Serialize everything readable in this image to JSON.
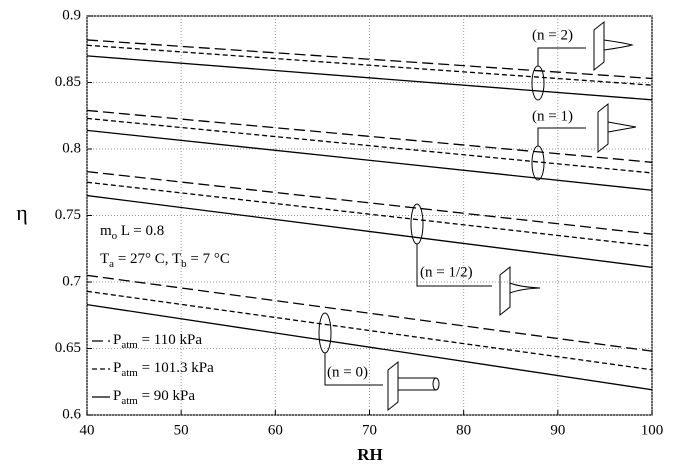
{
  "chart_data": {
    "type": "line",
    "xlabel": "RH",
    "ylabel": "η",
    "x": [
      40,
      100
    ],
    "xlim": [
      40,
      100
    ],
    "ylim": [
      0.6,
      0.9
    ],
    "xticks": [
      40,
      50,
      60,
      70,
      80,
      90,
      100
    ],
    "yticks": [
      0.6,
      0.65,
      0.7,
      0.75,
      0.8,
      0.85,
      0.9
    ],
    "grid": true,
    "color": "#000000",
    "series": [
      {
        "values": [
          0.882,
          0.853
        ],
        "dash": "long"
      },
      {
        "values": [
          0.878,
          0.848
        ],
        "dash": "short"
      },
      {
        "values": [
          0.87,
          0.837
        ],
        "dash": "solid"
      },
      {
        "values": [
          0.829,
          0.79
        ],
        "dash": "long"
      },
      {
        "values": [
          0.823,
          0.782
        ],
        "dash": "short"
      },
      {
        "values": [
          0.814,
          0.769
        ],
        "dash": "solid"
      },
      {
        "values": [
          0.783,
          0.736
        ],
        "dash": "long"
      },
      {
        "values": [
          0.775,
          0.727
        ],
        "dash": "short"
      },
      {
        "values": [
          0.765,
          0.711
        ],
        "dash": "solid"
      },
      {
        "values": [
          0.705,
          0.648
        ],
        "dash": "long"
      },
      {
        "values": [
          0.693,
          0.634
        ],
        "dash": "short"
      },
      {
        "values": [
          0.683,
          0.619
        ],
        "dash": "solid"
      }
    ],
    "annotations": [
      "(n = 2)",
      "(n = 1)",
      "(n = 1/2)",
      "(n = 0)"
    ],
    "notes": [
      [
        {
          "t": "m"
        },
        {
          "sub": "o"
        },
        {
          "t": " L = 0.8"
        }
      ],
      [
        {
          "t": "T"
        },
        {
          "sub": "a"
        },
        {
          "t": " = 27° C, T"
        },
        {
          "sub": "b"
        },
        {
          "t": " = 7 °C"
        }
      ]
    ],
    "legend": [
      {
        "symbol": "P",
        "sub": "atm",
        "text": " = 110 kPa",
        "dash": "long"
      },
      {
        "symbol": "P",
        "sub": "atm",
        "text": " = 101.3 kPa",
        "dash": "short"
      },
      {
        "symbol": "P",
        "sub": "atm",
        "text": " = 90 kPa",
        "dash": "solid"
      }
    ]
  }
}
